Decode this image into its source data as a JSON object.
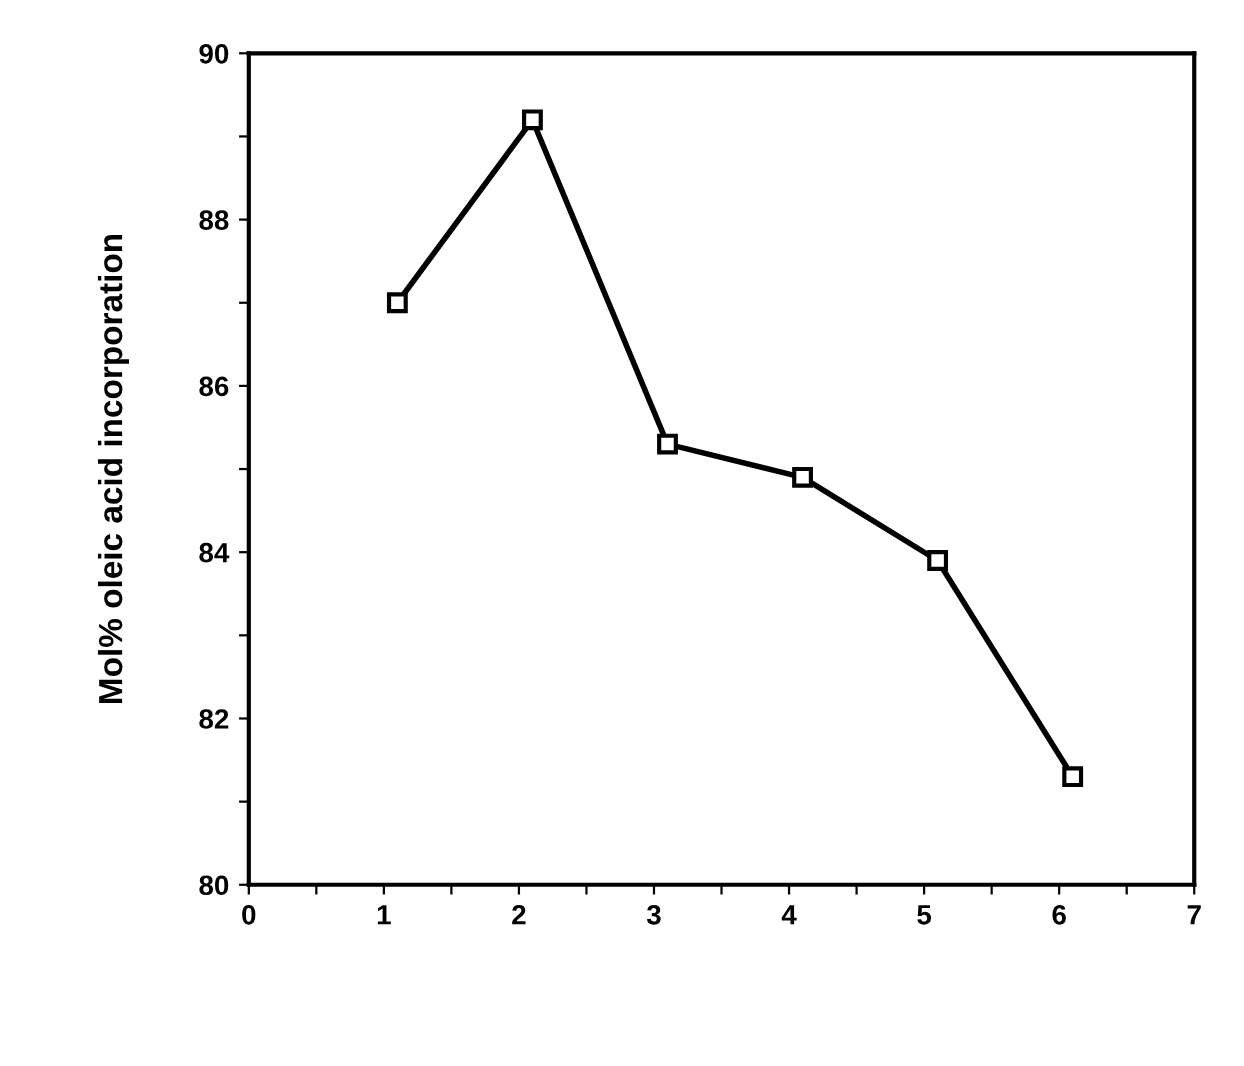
{
  "chart_data": {
    "type": "line",
    "ylabel": "Mol% oleic acid incorporation",
    "x": [
      1.1,
      2.1,
      3.1,
      4.1,
      5.1,
      6.1
    ],
    "series": [
      {
        "color": "#000000",
        "values": [
          87.0,
          89.2,
          85.3,
          84.9,
          83.9,
          81.3
        ]
      }
    ],
    "xlim": [
      0,
      7
    ],
    "xticks": [
      0,
      {
        "value": 0.5,
        "label": null
      },
      1,
      {
        "value": 1.5,
        "label": null
      },
      2,
      {
        "value": 2.5,
        "label": null
      },
      3,
      {
        "value": 3.5,
        "label": null
      },
      4,
      {
        "value": 4.5,
        "label": null
      },
      5,
      {
        "value": 5.5,
        "label": null
      },
      6,
      {
        "value": 6.5,
        "label": null
      },
      7
    ],
    "ylim": [
      80,
      90
    ],
    "yticks": [
      80,
      {
        "value": 81,
        "label": null
      },
      82,
      {
        "value": 83,
        "label": null
      },
      84,
      {
        "value": 85,
        "label": null
      },
      86,
      {
        "value": 87,
        "label": null
      },
      88,
      {
        "value": 89,
        "label": null
      },
      90
    ],
    "marker": "square",
    "line_style": "solid",
    "grid": false,
    "legend": false
  }
}
